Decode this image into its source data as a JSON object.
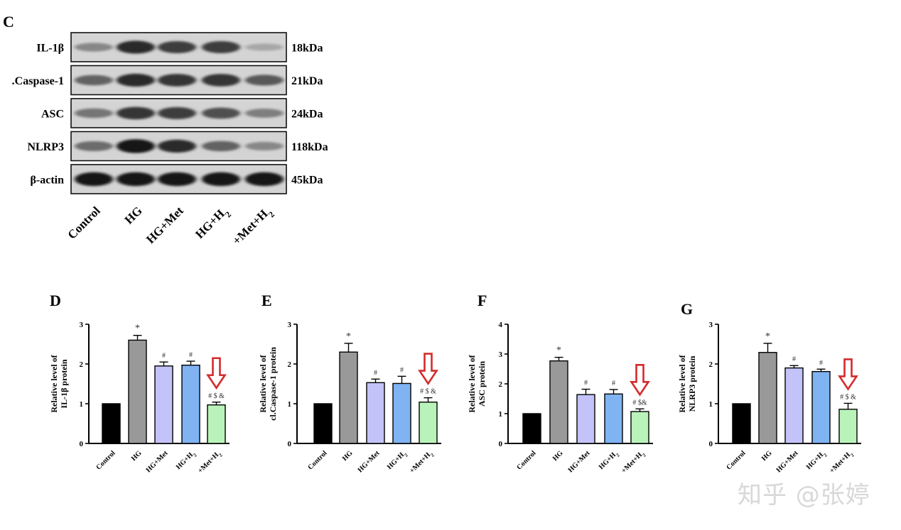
{
  "blot": {
    "panel_label": "C",
    "rows": [
      {
        "name": "IL-1β",
        "kda": "18kDa"
      },
      {
        "name": ".Caspase-1",
        "kda": "21kDa"
      },
      {
        "name": "ASC",
        "kda": "24kDa"
      },
      {
        "name": "NLRP3",
        "kda": "118kDa"
      },
      {
        "name": "β-actin",
        "kda": "45kDa"
      }
    ],
    "lanes": [
      "Control",
      "HG",
      "HG+Met",
      "HG+H2",
      "+Met+H2"
    ],
    "band_intensity": [
      [
        0.35,
        0.85,
        0.75,
        0.75,
        0.18
      ],
      [
        0.55,
        0.85,
        0.8,
        0.8,
        0.6
      ],
      [
        0.45,
        0.8,
        0.75,
        0.65,
        0.4
      ],
      [
        0.5,
        0.95,
        0.85,
        0.55,
        0.35
      ],
      [
        0.95,
        0.95,
        0.95,
        0.95,
        0.95
      ]
    ]
  },
  "colors": {
    "Control": "#000000",
    "HG": "#999999",
    "HG+Met": "#c3c3f9",
    "HG+H2": "#7fb3f2",
    "+Met+H2": "#b9f3b9",
    "arrow": "#d42b2b"
  },
  "chart_data": [
    {
      "type": "bar",
      "panel": "D",
      "ylabel": [
        "Relative level of",
        "IL-1β protein"
      ],
      "categories": [
        "Control",
        "HG",
        "HG+Met",
        "HG+H2",
        "+Met+H2"
      ],
      "values": [
        1.0,
        2.6,
        1.95,
        1.97,
        0.97
      ],
      "errors": [
        0,
        0.12,
        0.1,
        0.1,
        0.07
      ],
      "annotations": [
        "",
        "*",
        "#",
        "#",
        "# $ &"
      ],
      "ylim": [
        0,
        3
      ],
      "yticks": [
        0,
        1,
        2,
        3
      ],
      "arrow_on": 4
    },
    {
      "type": "bar",
      "panel": "E",
      "ylabel": [
        "Relative level of",
        "cl.Caspase-1 protein"
      ],
      "categories": [
        "Control",
        "HG",
        "HG+Met",
        "HG+H2",
        "+Met+H2"
      ],
      "values": [
        1.0,
        2.3,
        1.53,
        1.51,
        1.04
      ],
      "errors": [
        0,
        0.22,
        0.09,
        0.18,
        0.11
      ],
      "annotations": [
        "",
        "*",
        "#",
        "#",
        "# $ &"
      ],
      "ylim": [
        0,
        3
      ],
      "yticks": [
        0,
        1,
        2,
        3
      ],
      "arrow_on": 4
    },
    {
      "type": "bar",
      "panel": "F",
      "ylabel": [
        "Relative level of",
        "ASC protein"
      ],
      "categories": [
        "Control",
        "HG",
        "HG+Met",
        "HG+H2",
        "+Met+H2"
      ],
      "values": [
        1.0,
        2.77,
        1.64,
        1.66,
        1.07
      ],
      "errors": [
        0,
        0.12,
        0.18,
        0.15,
        0.09
      ],
      "annotations": [
        "",
        "*",
        "#",
        "#",
        "# $&"
      ],
      "ylim": [
        0,
        4
      ],
      "yticks": [
        0,
        1,
        2,
        3,
        4
      ],
      "arrow_on": 4
    },
    {
      "type": "bar",
      "panel": "G",
      "ylabel": [
        "Relative level of",
        "NLRP3 protein"
      ],
      "categories": [
        "Control",
        "HG",
        "HG+Met",
        "HG+H2",
        "+Met+H2"
      ],
      "values": [
        1.0,
        2.29,
        1.9,
        1.81,
        0.86
      ],
      "errors": [
        0,
        0.23,
        0.06,
        0.06,
        0.15
      ],
      "annotations": [
        "",
        "*",
        "#",
        "#",
        "# $ &"
      ],
      "ylim": [
        0,
        3
      ],
      "yticks": [
        0,
        1,
        2,
        3
      ],
      "arrow_on": 4
    }
  ],
  "watermark": "知乎 @张婷"
}
